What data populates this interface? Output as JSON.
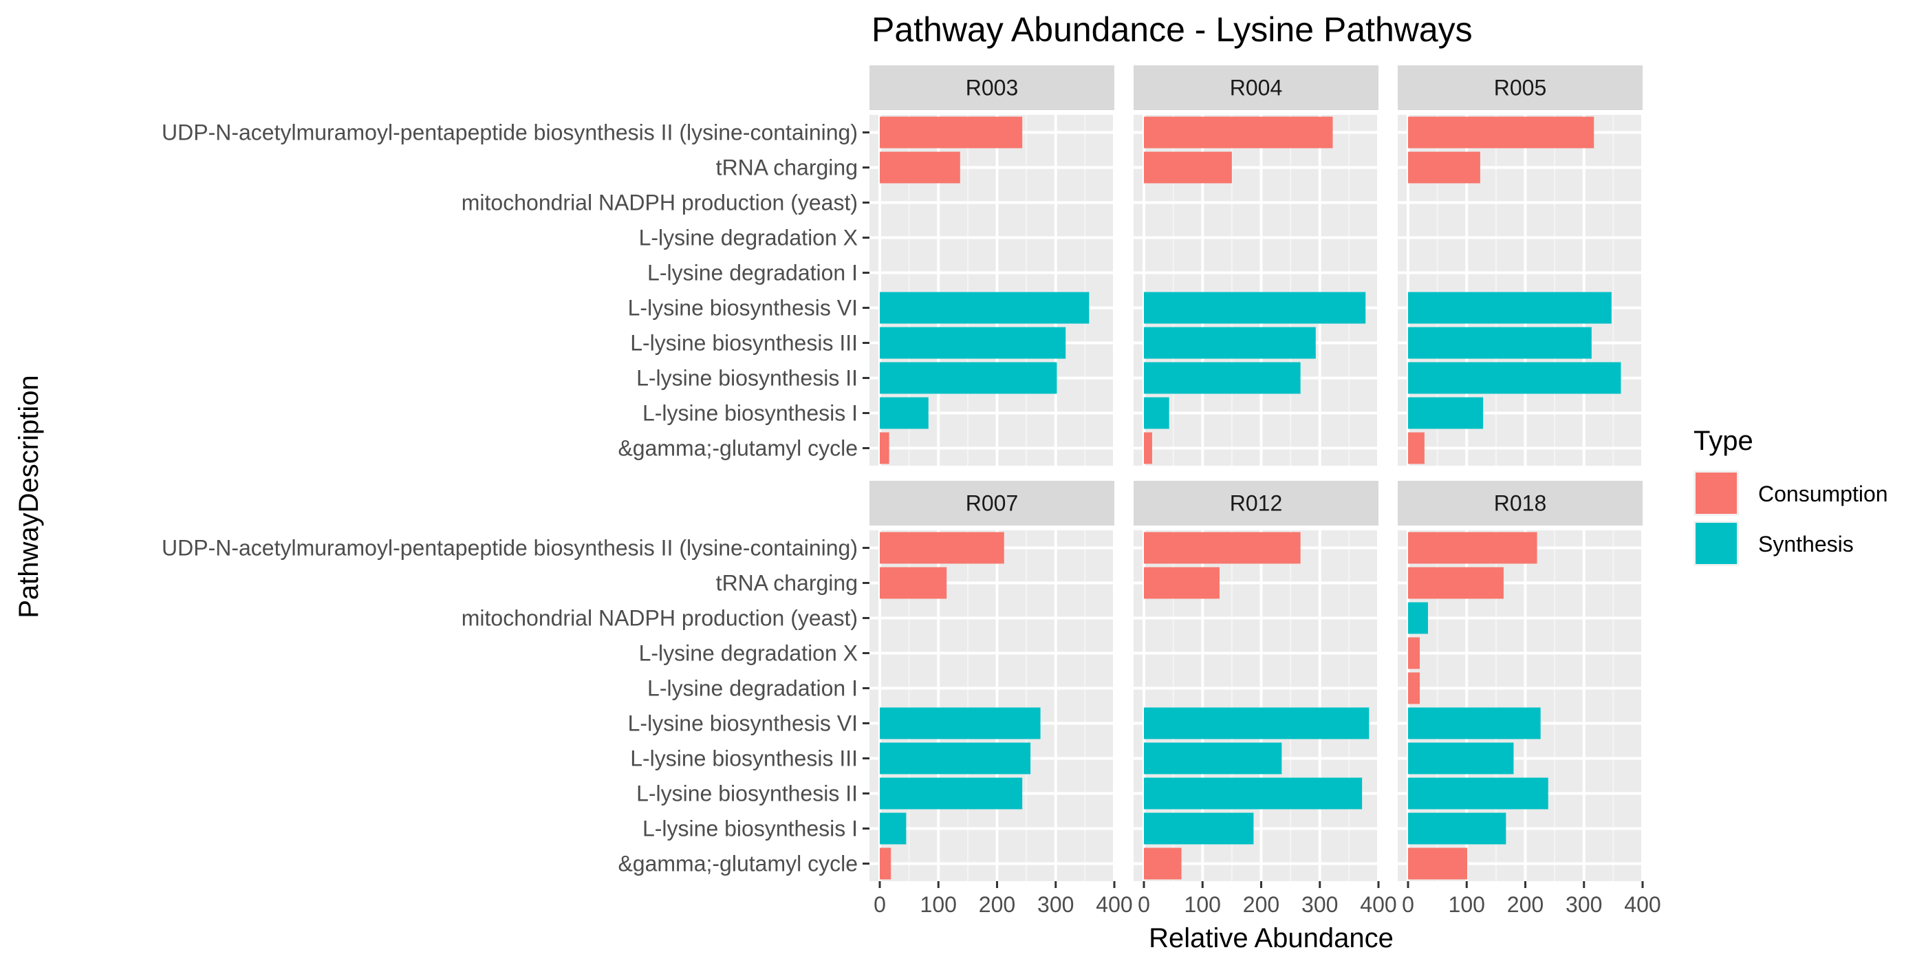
{
  "chart_data": {
    "type": "bar",
    "orientation": "horizontal",
    "title": "Pathway Abundance - Lysine Pathways",
    "xlabel": "Relative Abundance",
    "ylabel": "PathwayDescription",
    "xlim": [
      0,
      400
    ],
    "xticks": [
      0,
      100,
      200,
      300,
      400
    ],
    "grid": true,
    "legend": {
      "title": "Type",
      "position": "right",
      "entries": [
        {
          "label": "Consumption",
          "color": "#F8766D"
        },
        {
          "label": "Synthesis",
          "color": "#00BFC4"
        }
      ]
    },
    "categories": [
      "UDP-N-acetylmuramoyl-pentapeptide biosynthesis II (lysine-containing)",
      "tRNA charging",
      "mitochondrial NADPH production (yeast)",
      "L-lysine degradation X",
      "L-lysine degradation I",
      "L-lysine biosynthesis VI",
      "L-lysine biosynthesis III",
      "L-lysine biosynthesis II",
      "L-lysine biosynthesis I",
      "&gamma;-glutamyl cycle"
    ],
    "category_types": [
      "Consumption",
      "Consumption",
      "Synthesis",
      "Consumption",
      "Consumption",
      "Synthesis",
      "Synthesis",
      "Synthesis",
      "Synthesis",
      "Consumption"
    ],
    "facets": [
      {
        "label": "R003",
        "values": [
          243,
          137,
          0,
          0,
          0,
          357,
          317,
          302,
          83,
          16
        ]
      },
      {
        "label": "R004",
        "values": [
          322,
          150,
          0,
          0,
          0,
          378,
          293,
          267,
          43,
          14
        ]
      },
      {
        "label": "R005",
        "values": [
          317,
          123,
          0,
          0,
          0,
          347,
          313,
          363,
          128,
          28
        ]
      },
      {
        "label": "R007",
        "values": [
          212,
          114,
          0,
          0,
          0,
          274,
          257,
          243,
          45,
          19
        ]
      },
      {
        "label": "R012",
        "values": [
          267,
          129,
          0,
          0,
          0,
          384,
          235,
          372,
          187,
          64
        ]
      },
      {
        "label": "R018",
        "values": [
          220,
          163,
          34,
          20,
          20,
          226,
          180,
          239,
          167,
          101
        ]
      }
    ]
  }
}
